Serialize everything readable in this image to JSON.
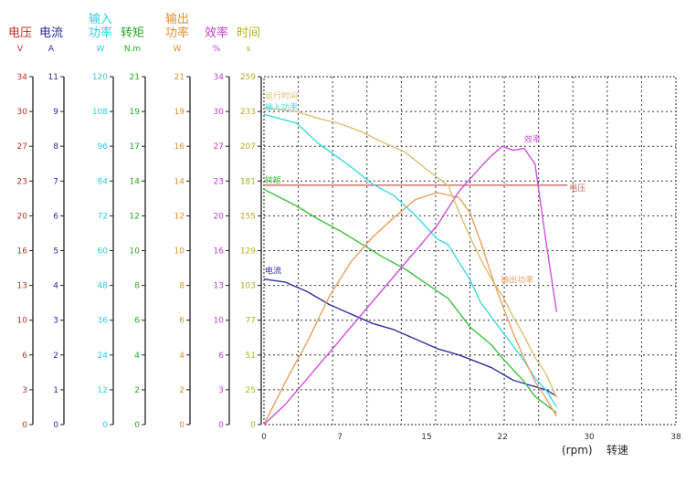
{
  "chart_data": {
    "type": "line",
    "x_axis": {
      "ticks": [
        0,
        7,
        15,
        22,
        30,
        38
      ],
      "range": [
        0,
        38
      ],
      "unit": "(rpm)",
      "label": "转速"
    },
    "grid": true,
    "y_axes": [
      {
        "id": "voltage",
        "title": "电压",
        "unit": "V",
        "color": "#c0302a",
        "ticks": [
          "0",
          "3",
          "6",
          "10",
          "13",
          "16",
          "20",
          "23",
          "27",
          "30",
          "34"
        ],
        "range": [
          0,
          34
        ]
      },
      {
        "id": "current",
        "title": "电流",
        "unit": "A",
        "color": "#2a2a9a",
        "ticks": [
          "0",
          "1",
          "2",
          "3",
          "4",
          "5",
          "6",
          "7",
          "8",
          "9",
          "11"
        ],
        "range": [
          0,
          11
        ]
      },
      {
        "id": "input_power",
        "title": "输入\n功率",
        "unit": "W",
        "color": "#2ad0e0",
        "ticks": [
          "0",
          "12",
          "24",
          "36",
          "48",
          "60",
          "72",
          "84",
          "96",
          "108",
          "120"
        ],
        "range": [
          0,
          120
        ]
      },
      {
        "id": "torque",
        "title": "转矩",
        "unit": "N.m",
        "color": "#22aa22",
        "ticks": [
          "0",
          "2",
          "4",
          "6",
          "8",
          "10",
          "12",
          "14",
          "17",
          "19",
          "21"
        ],
        "range": [
          0,
          21
        ]
      },
      {
        "id": "output_power",
        "title": "输出\n功率",
        "unit": "W",
        "color": "#e0902a",
        "ticks": [
          "0",
          "2",
          "4",
          "6",
          "8",
          "10",
          "12",
          "14",
          "16",
          "19",
          "21"
        ],
        "range": [
          0,
          21
        ]
      },
      {
        "id": "efficiency",
        "title": "效率",
        "unit": "%",
        "color": "#c040d0",
        "ticks": [
          "0",
          "3",
          "6",
          "10",
          "13",
          "16",
          "20",
          "23",
          "27",
          "30",
          "34"
        ],
        "range": [
          0,
          34
        ]
      },
      {
        "id": "time",
        "title": "时间",
        "unit": "s",
        "color": "#b0b020",
        "ticks": [
          "0",
          "25",
          "51",
          "77",
          "103",
          "129",
          "155",
          "181",
          "207",
          "233",
          "259"
        ],
        "range": [
          0,
          259
        ]
      }
    ],
    "series": [
      {
        "name": "电压",
        "axis": "voltage",
        "color": "#c86a5a",
        "points": [
          [
            0,
            23.4
          ],
          [
            3,
            23.4
          ],
          [
            6,
            23.4
          ],
          [
            10,
            23.4
          ],
          [
            14,
            23.4
          ],
          [
            18,
            23.4
          ],
          [
            22,
            23.4
          ],
          [
            26,
            23.4
          ],
          [
            28,
            23.4
          ]
        ]
      },
      {
        "name": "电流",
        "axis": "current",
        "color": "#3030a0",
        "points": [
          [
            0,
            4.6
          ],
          [
            2,
            4.5
          ],
          [
            4,
            4.2
          ],
          [
            6,
            3.8
          ],
          [
            8,
            3.5
          ],
          [
            10,
            3.2
          ],
          [
            12,
            3.0
          ],
          [
            14,
            2.7
          ],
          [
            16,
            2.4
          ],
          [
            18,
            2.2
          ],
          [
            19.5,
            2.0
          ],
          [
            21,
            1.8
          ],
          [
            22,
            1.6
          ],
          [
            23,
            1.4
          ],
          [
            24,
            1.3
          ],
          [
            25,
            1.2
          ],
          [
            26,
            1.1
          ],
          [
            27,
            0.9
          ]
        ]
      },
      {
        "name": "输入功率",
        "axis": "input_power",
        "color": "#40d8e8",
        "points": [
          [
            0,
            107
          ],
          [
            3,
            104
          ],
          [
            5,
            97
          ],
          [
            8,
            89
          ],
          [
            10,
            83
          ],
          [
            12,
            79
          ],
          [
            14,
            72
          ],
          [
            16,
            64
          ],
          [
            17,
            62
          ],
          [
            18,
            56
          ],
          [
            19,
            50
          ],
          [
            20,
            42
          ],
          [
            21,
            37
          ],
          [
            22,
            32
          ],
          [
            23,
            27
          ],
          [
            24,
            22
          ],
          [
            25,
            16
          ],
          [
            26,
            12
          ],
          [
            27,
            6
          ]
        ]
      },
      {
        "name": "转矩",
        "axis": "torque",
        "color": "#40c040",
        "points": [
          [
            0,
            14.2
          ],
          [
            3,
            13.2
          ],
          [
            5,
            12.4
          ],
          [
            7,
            11.7
          ],
          [
            9,
            10.9
          ],
          [
            11,
            10.1
          ],
          [
            13,
            9.4
          ],
          [
            15,
            8.5
          ],
          [
            17,
            7.6
          ],
          [
            19,
            5.9
          ],
          [
            21,
            4.8
          ],
          [
            22,
            4.0
          ],
          [
            23,
            3.3
          ],
          [
            24,
            2.6
          ],
          [
            25,
            1.7
          ],
          [
            26,
            1.2
          ],
          [
            27,
            0.7
          ]
        ]
      },
      {
        "name": "输出功率",
        "axis": "output_power",
        "color": "#e8a060",
        "points": [
          [
            0,
            0
          ],
          [
            2,
            2.6
          ],
          [
            4,
            5.0
          ],
          [
            6,
            7.7
          ],
          [
            8,
            9.8
          ],
          [
            10,
            11.3
          ],
          [
            12,
            12.5
          ],
          [
            14,
            13.6
          ],
          [
            16,
            14.0
          ],
          [
            18,
            13.7
          ],
          [
            19,
            12.8
          ],
          [
            20,
            11.0
          ],
          [
            21,
            9.0
          ],
          [
            22,
            7.2
          ],
          [
            23,
            5.5
          ],
          [
            24,
            4.0
          ],
          [
            25,
            2.6
          ],
          [
            26,
            1.6
          ],
          [
            27,
            0.5
          ]
        ]
      },
      {
        "name": "效率",
        "axis": "efficiency",
        "color": "#d050e0",
        "points": [
          [
            0,
            0
          ],
          [
            2,
            2.0
          ],
          [
            4,
            4.5
          ],
          [
            6,
            7.0
          ],
          [
            8,
            9.5
          ],
          [
            10,
            12.0
          ],
          [
            12,
            14.5
          ],
          [
            14,
            17.0
          ],
          [
            16,
            19.5
          ],
          [
            18,
            22.8
          ],
          [
            20,
            25.2
          ],
          [
            21,
            26.3
          ],
          [
            22,
            27.2
          ],
          [
            23,
            26.8
          ],
          [
            24,
            27.0
          ],
          [
            25,
            25.5
          ],
          [
            26,
            18.0
          ],
          [
            27,
            11.0
          ]
        ]
      },
      {
        "name": "运行时间",
        "axis": "time",
        "color": "#d8c070",
        "points": [
          [
            0,
            236
          ],
          [
            3,
            233
          ],
          [
            5,
            228
          ],
          [
            7,
            224
          ],
          [
            9,
            218
          ],
          [
            11,
            210
          ],
          [
            13,
            203
          ],
          [
            15,
            190
          ],
          [
            17,
            178
          ],
          [
            18,
            158
          ],
          [
            19,
            140
          ],
          [
            20,
            123
          ],
          [
            21,
            108
          ],
          [
            22,
            96
          ],
          [
            23,
            80
          ],
          [
            24,
            66
          ],
          [
            25,
            50
          ],
          [
            26,
            38
          ],
          [
            27,
            20
          ]
        ]
      }
    ]
  }
}
